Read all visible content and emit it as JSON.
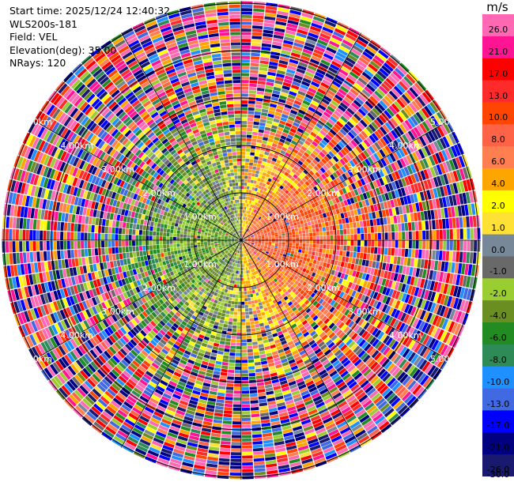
{
  "info": {
    "start_time": "Start time: 2025/12/24 12:40:32",
    "site": "WLS200s-181",
    "field": "Field: VEL",
    "elevation": "Elevation(deg): 35.00",
    "nrays": "NRays: 120"
  },
  "chart_data": {
    "type": "heatmap",
    "projection": "polar-ppi",
    "field": "VEL",
    "unit": "m/s",
    "n_rays": 120,
    "range_rings_km": [
      1.0,
      2.0,
      3.0,
      4.0,
      5.0
    ],
    "range_ring_labels": [
      "1.00km",
      "2.00km",
      "3.00km",
      "4.00km",
      "5.00km"
    ],
    "max_range_km": 5.05,
    "colorbar": {
      "ticks": [
        26.0,
        21.0,
        17.0,
        13.0,
        10.0,
        8.0,
        6.0,
        4.0,
        2.0,
        1.0,
        0.0,
        -1.0,
        -2.0,
        -4.0,
        -6.0,
        -8.0,
        -10.0,
        -13.0,
        -17.0,
        -21.0,
        -26.0,
        -30.0
      ],
      "tick_labels": [
        "26.0",
        "21.0",
        "17.0",
        "13.0",
        "10.0",
        "8.0",
        "6.0",
        "4.0",
        "2.0",
        "1.0",
        "0.0",
        "-1.0",
        "-2.0",
        "-4.0",
        "-6.0",
        "-8.0",
        "-10.0",
        "-13.0",
        "-17.0",
        "-21.0",
        "-26.0",
        "-30.0"
      ],
      "colors": [
        "#ff69b4",
        "#ff1493",
        "#ff0000",
        "#ff2a2a",
        "#ff4500",
        "#ff6347",
        "#ff7f50",
        "#ffa500",
        "#ffff00",
        "#ffe135",
        "#778899",
        "#696969",
        "#9acd32",
        "#6b8e23",
        "#228b22",
        "#2e8b57",
        "#1e90ff",
        "#4169e1",
        "#0000ff",
        "#000080",
        "#191970"
      ]
    },
    "pattern": {
      "westward_flow_value": -4.0,
      "eastward_flow_value": 6.0,
      "clean_signal_range_km": 2.4
    }
  }
}
